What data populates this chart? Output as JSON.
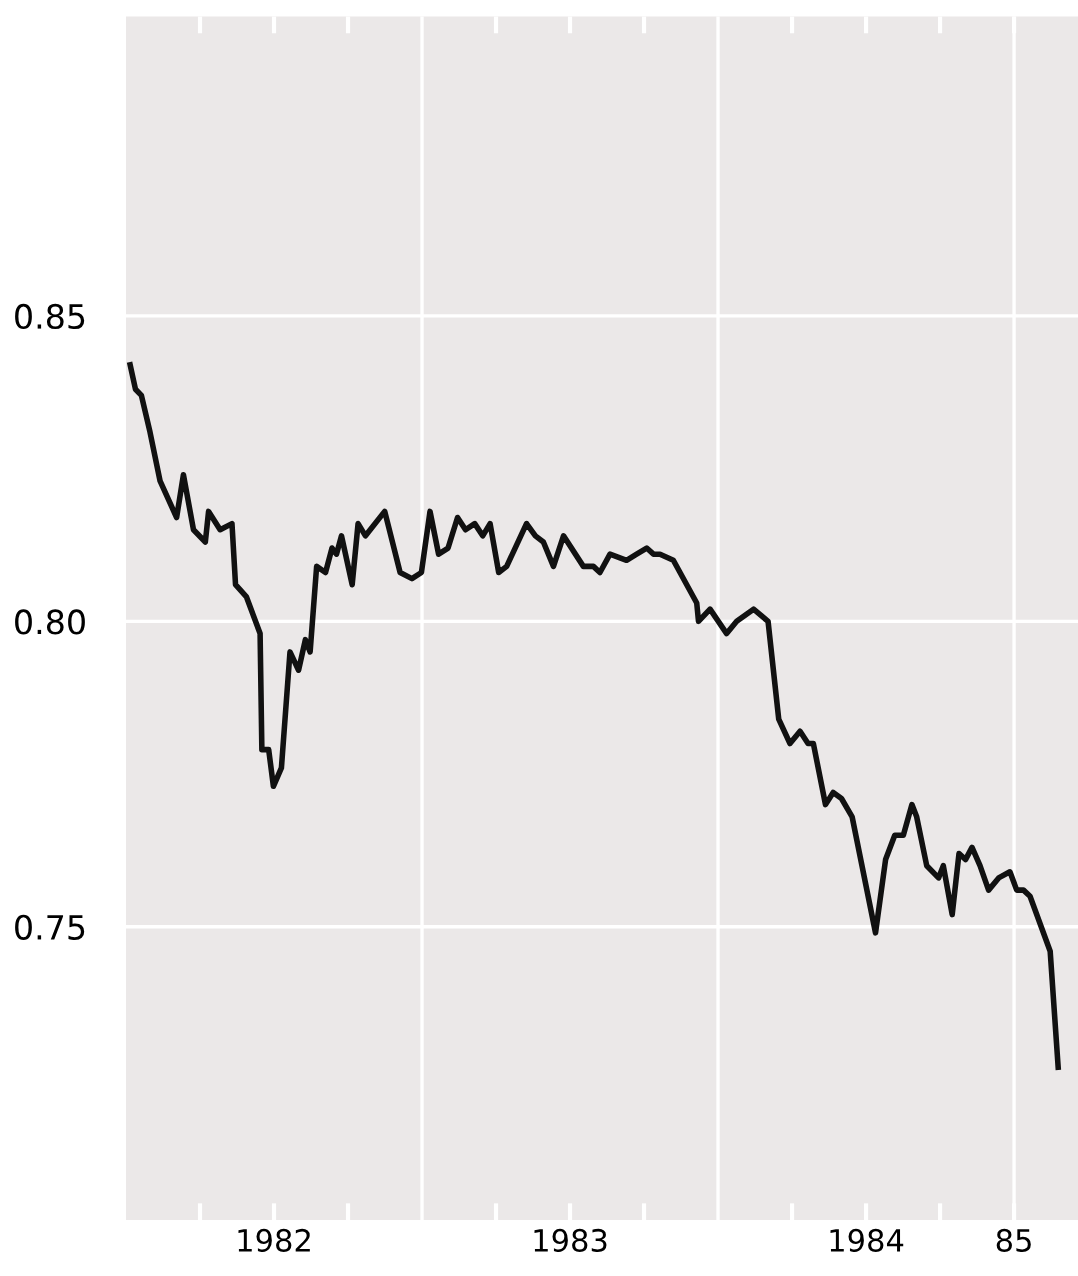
{
  "chart_data": {
    "type": "line",
    "x": [
      1982.014,
      1982.032,
      1982.052,
      1982.081,
      1982.115,
      1982.171,
      1982.194,
      1982.228,
      1982.268,
      1982.279,
      1982.318,
      1982.358,
      1982.37,
      1982.407,
      1982.453,
      1982.459,
      1982.482,
      1982.498,
      1982.525,
      1982.554,
      1982.583,
      1982.606,
      1982.622,
      1982.644,
      1982.674,
      1982.696,
      1982.711,
      1982.728,
      1982.764,
      1982.784,
      1982.809,
      1982.874,
      1982.926,
      1982.966,
      1982.998,
      1983.027,
      1983.056,
      1983.088,
      1983.12,
      1983.147,
      1983.178,
      1983.205,
      1983.23,
      1983.259,
      1983.286,
      1983.353,
      1983.383,
      1983.41,
      1983.444,
      1983.478,
      1983.545,
      1983.579,
      1983.601,
      1983.635,
      1983.691,
      1983.725,
      1983.759,
      1983.782,
      1983.804,
      1983.849,
      1983.928,
      1983.934,
      1983.973,
      1984.029,
      1984.063,
      1984.12,
      1984.169,
      1984.205,
      1984.243,
      1984.277,
      1984.304,
      1984.322,
      1984.363,
      1984.389,
      1984.417,
      1984.453,
      1984.532,
      1984.566,
      1984.597,
      1984.626,
      1984.655,
      1984.671,
      1984.705,
      1984.745,
      1984.761,
      1984.791,
      1984.814,
      1984.836,
      1984.858,
      1984.885,
      1984.914,
      1984.948,
      1984.986,
      1985.009,
      1985.032,
      1985.054,
      1985.122,
      1985.149
    ],
    "series": [
      {
        "color": "#111111",
        "values": [
          0.842,
          0.838,
          0.837,
          0.831,
          0.823,
          0.817,
          0.824,
          0.815,
          0.813,
          0.818,
          0.815,
          0.816,
          0.806,
          0.804,
          0.798,
          0.779,
          0.779,
          0.773,
          0.776,
          0.795,
          0.792,
          0.797,
          0.795,
          0.809,
          0.808,
          0.812,
          0.811,
          0.814,
          0.806,
          0.816,
          0.814,
          0.818,
          0.808,
          0.807,
          0.808,
          0.818,
          0.811,
          0.812,
          0.817,
          0.815,
          0.816,
          0.814,
          0.816,
          0.808,
          0.809,
          0.816,
          0.814,
          0.813,
          0.809,
          0.814,
          0.809,
          0.809,
          0.808,
          0.811,
          0.81,
          0.811,
          0.812,
          0.811,
          0.811,
          0.81,
          0.803,
          0.8,
          0.802,
          0.798,
          0.8,
          0.802,
          0.8,
          0.784,
          0.78,
          0.782,
          0.78,
          0.78,
          0.77,
          0.772,
          0.771,
          0.768,
          0.749,
          0.761,
          0.765,
          0.765,
          0.77,
          0.768,
          0.76,
          0.758,
          0.76,
          0.752,
          0.762,
          0.761,
          0.763,
          0.76,
          0.756,
          0.758,
          0.759,
          0.756,
          0.756,
          0.755,
          0.746,
          0.727
        ]
      }
    ],
    "xlim": [
      1982.0,
      1985.216
    ],
    "xticks": [
      {
        "value": 1982.25,
        "label": null
      },
      {
        "value": 1982.5,
        "label": "1982"
      },
      {
        "value": 1982.75,
        "label": null
      },
      {
        "value": 1983.25,
        "label": null
      },
      {
        "value": 1983.5,
        "label": "1983"
      },
      {
        "value": 1983.75,
        "label": null
      },
      {
        "value": 1984.25,
        "label": null
      },
      {
        "value": 1984.5,
        "label": "1984"
      },
      {
        "value": 1984.75,
        "label": null
      },
      {
        "value": 1985,
        "label": "85"
      }
    ],
    "ylim": [
      0.702,
      0.899
    ],
    "yticks": [
      {
        "value": 0.75,
        "label": "0.75"
      },
      {
        "value": 0.8,
        "label": "0.80"
      },
      {
        "value": 0.85,
        "label": "0.85"
      }
    ],
    "grid": "y",
    "ref_lines": [
      {
        "axis": "x",
        "value": 1983,
        "color": "#ffffff"
      },
      {
        "axis": "x",
        "value": 1984,
        "color": "#ffffff"
      },
      {
        "axis": "x",
        "value": 1985,
        "color": "#ffffff"
      }
    ],
    "marker": "none",
    "line_style": "solid",
    "legend": false
  }
}
